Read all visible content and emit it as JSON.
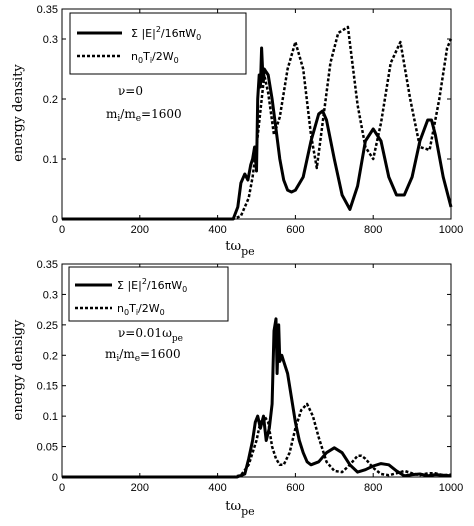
{
  "chart_data": [
    {
      "type": "line",
      "xlabel": "tω",
      "xlabel_sub": "pe",
      "ylabel": "energy density",
      "xlim": [
        0,
        1000
      ],
      "ylim": [
        0,
        0.35
      ],
      "xticks": [
        "0",
        "200",
        "400",
        "600",
        "800",
        "1000"
      ],
      "yticks": [
        "0",
        "0.1",
        "0.2",
        "0.3",
        "0.35"
      ],
      "xtick_values": [
        0,
        200,
        400,
        600,
        800,
        1000
      ],
      "ytick_values": [
        0,
        0.1,
        0.2,
        0.3,
        0.35
      ],
      "legend_position": "top-left",
      "annotations": [
        "ν=0",
        "m_i/m_e=1600"
      ],
      "annotation_1": "ν=0",
      "annotation_2": "m",
      "annotation_2_sub_i": "i",
      "annotation_2_mid": "/m",
      "annotation_2_sub_e": "e",
      "annotation_2_end": "=1600",
      "series": [
        {
          "name": "Σ |E|²/16πW₀",
          "legend": {
            "pre": "Σ |E|",
            "sup": "2",
            "post": "/16πW",
            "sub": "0"
          },
          "style": "solid",
          "x": [
            0,
            440,
            452,
            460,
            470,
            478,
            485,
            490,
            495,
            500,
            503,
            507,
            510,
            513,
            517,
            520,
            525,
            530,
            540,
            550,
            560,
            570,
            580,
            590,
            600,
            620,
            640,
            660,
            670,
            680,
            700,
            720,
            740,
            760,
            780,
            800,
            820,
            840,
            860,
            880,
            900,
            920,
            940,
            950,
            960,
            980,
            1000
          ],
          "y": [
            0,
            0,
            0.02,
            0.06,
            0.075,
            0.065,
            0.09,
            0.1,
            0.12,
            0.08,
            0.2,
            0.24,
            0.22,
            0.285,
            0.23,
            0.25,
            0.245,
            0.24,
            0.2,
            0.15,
            0.1,
            0.065,
            0.048,
            0.045,
            0.048,
            0.07,
            0.13,
            0.175,
            0.18,
            0.165,
            0.1,
            0.04,
            0.016,
            0.055,
            0.13,
            0.15,
            0.13,
            0.07,
            0.04,
            0.04,
            0.07,
            0.13,
            0.165,
            0.165,
            0.14,
            0.07,
            0.02
          ]
        },
        {
          "name": "n₀Tᵢ/2W₀",
          "legend": {
            "pre": "n",
            "sub1": "0",
            "mid": "T",
            "sub2": "i",
            "post": "/2W",
            "sub3": "0"
          },
          "style": "dotted",
          "x": [
            0,
            440,
            460,
            480,
            490,
            500,
            510,
            520,
            530,
            545,
            560,
            580,
            600,
            620,
            640,
            655,
            670,
            690,
            710,
            735,
            760,
            780,
            800,
            820,
            845,
            870,
            895,
            920,
            945,
            970,
            990,
            1000
          ],
          "y": [
            0,
            0,
            0.005,
            0.035,
            0.07,
            0.12,
            0.18,
            0.24,
            0.21,
            0.14,
            0.17,
            0.25,
            0.295,
            0.25,
            0.14,
            0.085,
            0.16,
            0.26,
            0.31,
            0.32,
            0.19,
            0.12,
            0.1,
            0.16,
            0.26,
            0.295,
            0.2,
            0.12,
            0.115,
            0.2,
            0.285,
            0.3
          ]
        }
      ]
    },
    {
      "type": "line",
      "xlabel": "tω",
      "xlabel_sub": "pe",
      "ylabel": "energy densigy",
      "xlim": [
        0,
        1000
      ],
      "ylim": [
        0,
        0.35
      ],
      "xticks": [
        "0",
        "200",
        "400",
        "600",
        "800",
        "1000"
      ],
      "yticks": [
        "0",
        "0.05",
        "0.1",
        "0.15",
        "0.2",
        "0.25",
        "0.3",
        "0.35"
      ],
      "xtick_values": [
        0,
        200,
        400,
        600,
        800,
        1000
      ],
      "ytick_values": [
        0,
        0.05,
        0.1,
        0.15,
        0.2,
        0.25,
        0.3,
        0.35
      ],
      "legend_position": "top-left",
      "annotations": [
        "ν=0.01ω_pe",
        "m_i/m_e=1600"
      ],
      "annotation_1": "ν=0.01ω",
      "annotation_1_sub": "pe",
      "annotation_2": "m",
      "annotation_2_sub_i": "i",
      "annotation_2_mid": "/m",
      "annotation_2_sub_e": "e",
      "annotation_2_end": "=1600",
      "series": [
        {
          "name": "Σ |E|²/16πW₀",
          "legend": {
            "pre": "Σ |E|",
            "sup": "2",
            "post": "/16πW",
            "sub": "0"
          },
          "style": "solid",
          "x": [
            0,
            450,
            470,
            480,
            490,
            497,
            503,
            510,
            518,
            525,
            533,
            540,
            545,
            550,
            553,
            557,
            560,
            565,
            570,
            580,
            590,
            600,
            610,
            620,
            630,
            640,
            660,
            680,
            700,
            720,
            740,
            760,
            780,
            800,
            820,
            840,
            860,
            880,
            900,
            920,
            940,
            960,
            980,
            1000
          ],
          "y": [
            0,
            0,
            0.005,
            0.03,
            0.06,
            0.09,
            0.1,
            0.08,
            0.1,
            0.06,
            0.08,
            0.12,
            0.24,
            0.26,
            0.17,
            0.25,
            0.19,
            0.2,
            0.19,
            0.17,
            0.13,
            0.09,
            0.06,
            0.04,
            0.025,
            0.02,
            0.025,
            0.04,
            0.048,
            0.04,
            0.02,
            0.008,
            0.012,
            0.018,
            0.022,
            0.02,
            0.01,
            0.002,
            0.004,
            0.005,
            0.002,
            0.004,
            0.003,
            0.002
          ]
        },
        {
          "name": "n₀Tᵢ/2W₀",
          "legend": {
            "pre": "n",
            "sub1": "0",
            "mid": "T",
            "sub2": "i",
            "post": "/2W",
            "sub3": "0"
          },
          "style": "dotted",
          "x": [
            0,
            440,
            460,
            480,
            500,
            510,
            520,
            530,
            540,
            550,
            560,
            570,
            585,
            600,
            615,
            630,
            645,
            660,
            680,
            700,
            720,
            740,
            760,
            770,
            780,
            800,
            820,
            840,
            860,
            880,
            900,
            920,
            940,
            960,
            980,
            1000
          ],
          "y": [
            0,
            0,
            0.003,
            0.02,
            0.06,
            0.09,
            0.1,
            0.09,
            0.05,
            0.03,
            0.02,
            0.02,
            0.04,
            0.08,
            0.11,
            0.12,
            0.1,
            0.065,
            0.025,
            0.01,
            0.008,
            0.02,
            0.035,
            0.035,
            0.03,
            0.015,
            0.005,
            0.003,
            0.006,
            0.01,
            0.006,
            0.003,
            0.006,
            0.006,
            0.003,
            0.004
          ]
        }
      ]
    }
  ]
}
